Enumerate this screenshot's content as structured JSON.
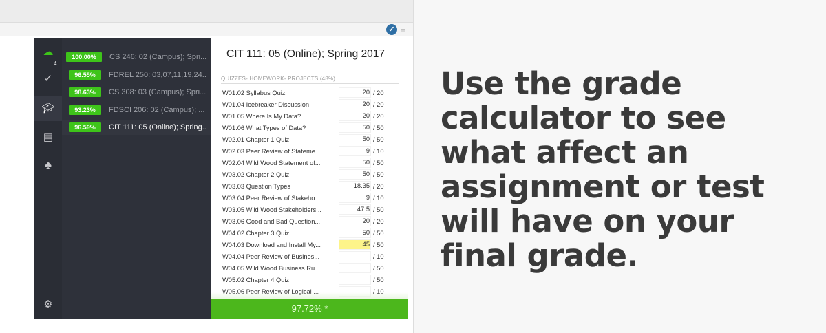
{
  "browser": {
    "extension_icon": "checkmark-badge-icon",
    "menu_icon": "hamburger-icon"
  },
  "rail": {
    "items": [
      {
        "icon": "cloud-icon"
      },
      {
        "icon": "notifications-check-icon",
        "badge": "4"
      },
      {
        "icon": "graduation-cap-icon"
      },
      {
        "icon": "calendar-layout-icon"
      },
      {
        "icon": "tree-icon"
      },
      {
        "icon": "settings-gear-icon"
      }
    ]
  },
  "courses": [
    {
      "grade": "100.00%",
      "name": "CS 246: 02 (Campus); Spri..."
    },
    {
      "grade": "96.55%",
      "name": "FDREL 250: 03,07,11,19,24.."
    },
    {
      "grade": "98.63%",
      "name": "CS 308: 03 (Campus); Spri..."
    },
    {
      "grade": "93.23%",
      "name": "FDSCI 206: 02 (Campus); ..."
    },
    {
      "grade": "96.59%",
      "name": "CIT 111: 05 (Online); Spring.."
    }
  ],
  "detail": {
    "title": "CIT 111: 05 (Online); Spring 2017",
    "section": "QUIZZES- HOMEWORK- PROJECTS (48%)",
    "assignments": [
      {
        "name": "W01.02 Syllabus Quiz",
        "score": "20",
        "max": "/  20"
      },
      {
        "name": "W01.04 Icebreaker Discussion",
        "score": "20",
        "max": "/  20"
      },
      {
        "name": "W01.05 Where Is My Data?",
        "score": "20",
        "max": "/  20"
      },
      {
        "name": "W01.06 What Types of Data?",
        "score": "50",
        "max": "/  50"
      },
      {
        "name": "W02.01 Chapter 1 Quiz",
        "score": "50",
        "max": "/  50"
      },
      {
        "name": "W02.03 Peer Review of Stateme...",
        "score": "9",
        "max": "/  10"
      },
      {
        "name": "W02.04 Wild Wood Statement of...",
        "score": "50",
        "max": "/  50"
      },
      {
        "name": "W03.02 Chapter 2 Quiz",
        "score": "50",
        "max": "/  50"
      },
      {
        "name": "W03.03 Question Types",
        "score": "18.35",
        "max": "/  20"
      },
      {
        "name": "W03.04 Peer Review of Stakeho...",
        "score": "9",
        "max": "/  10"
      },
      {
        "name": "W03.05 Wild Wood Stakeholders...",
        "score": "47.5",
        "max": "/  50"
      },
      {
        "name": "W03.06 Good and Bad Question...",
        "score": "20",
        "max": "/  20"
      },
      {
        "name": "W04.02 Chapter 3 Quiz",
        "score": "50",
        "max": "/  50"
      },
      {
        "name": "W04.03 Download and Install My...",
        "score": "45",
        "max": "/  50",
        "highlight": true
      },
      {
        "name": "W04.04 Peer Review of Busines...",
        "score": "",
        "max": "/  10"
      },
      {
        "name": "W04.05 Wild Wood Business Ru...",
        "score": "",
        "max": "/  50"
      },
      {
        "name": "W05.02 Chapter 4 Quiz",
        "score": "",
        "max": "/  50"
      },
      {
        "name": "W05.06 Peer Review of Logical ...",
        "score": "",
        "max": "/  10"
      }
    ],
    "total": "97.72% *"
  },
  "caption": "Use the grade calculator to see what affect an assignment or test will have on your final grade."
}
